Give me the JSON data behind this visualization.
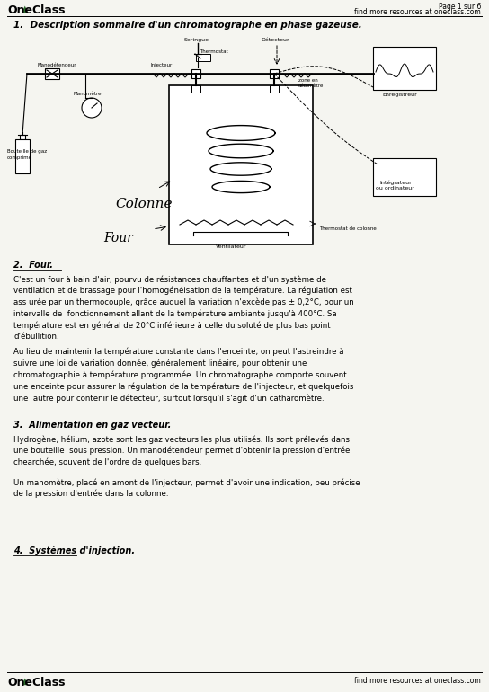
{
  "bg_color": "#f5f5f0",
  "title_section1": "1.  Description sommaire d'un chromatographe en phase gazeuse.",
  "section2_title": "2.  Four.",
  "section2_para1": "C'est un four à bain d'air, pourvu de résistances chauffantes et d'un système de\nventilation et de brassage pour l'homogénéisation de la température. La régulation est\nass urée par un thermocouple, grâce auquel la variation n'excède pas ± 0,2°C, pour un\nintervalle de  fonctionnement allant de la température ambiante jusqu'à 400°C. Sa\ntempérature est en général de 20°C inférieure à celle du soluté de plus bas point\nd'ébullition.",
  "section2_para2": "Au lieu de maintenir la température constante dans l'enceinte, on peut l'astreindre à\nsuivre une loi de variation donnée, généralement linéaire, pour obtenir une\nchromatographie à température programmée. Un chromatographe comporte souvent\nune enceinte pour assurer la régulation de la température de l'injecteur, et quelquefois\nune  autre pour contenir le détecteur, surtout lorsqu'il s'agit d'un catharomètre.",
  "section3_title": "3.  Alimentation en gaz vecteur.",
  "section3_para1": "Hydrogène, hélium, azote sont les gaz vecteurs les plus utilisés. Ils sont prélevés dans\nune bouteille  sous pression. Un manodétendeur permet d'obtenir la pression d'entrée\nchearchée, souvent de l'ordre de quelques bars.",
  "section3_para2": "Un manomètre, placé en amont de l'injecteur, permet d'avoir une indication, peu précise\nde la pression d'entrée dans la colonne.",
  "section4_title": "4.  Systèmes d'injection.",
  "header_left": "OneClass",
  "header_right": "find more resources at oneclass.com",
  "header_page": "Page 1 sur 6",
  "footer_left": "OneClass",
  "footer_right": "find more resources at oneclass.com"
}
